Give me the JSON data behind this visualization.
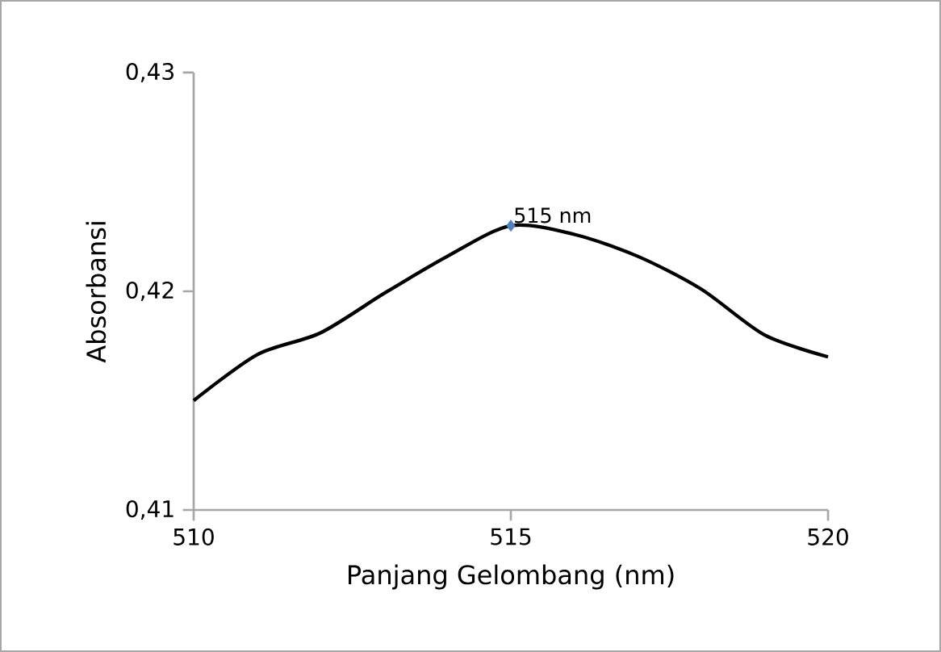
{
  "chart_data": {
    "type": "line",
    "xlabel": "Panjang Gelombang (nm)",
    "ylabel": "Absorbansi",
    "x": [
      510,
      511,
      512,
      513,
      514,
      515,
      516,
      517,
      518,
      519,
      520
    ],
    "series": [
      {
        "color": "#000000",
        "values": [
          0.415,
          0.4171,
          0.4181,
          0.4199,
          0.4216,
          0.423,
          0.4226,
          0.4216,
          0.4201,
          0.418,
          0.417
        ],
        "marker": "none",
        "line_style": "solid"
      },
      {
        "type": "scatter",
        "color": "#4f81bd",
        "x": [
          515
        ],
        "values": [
          0.423
        ],
        "marker": "diamond"
      }
    ],
    "annotations": [
      {
        "text": "515 nm",
        "x": 515,
        "y": 0.423
      }
    ],
    "xlim": [
      510,
      520
    ],
    "xticks": [
      510,
      515,
      520
    ],
    "ylim": [
      0.41,
      0.43
    ],
    "yticks": [
      {
        "value": 0.41,
        "label": "0,41"
      },
      {
        "value": 0.42,
        "label": "0,42"
      },
      {
        "value": 0.43,
        "label": "0,43"
      }
    ],
    "grid": false
  }
}
